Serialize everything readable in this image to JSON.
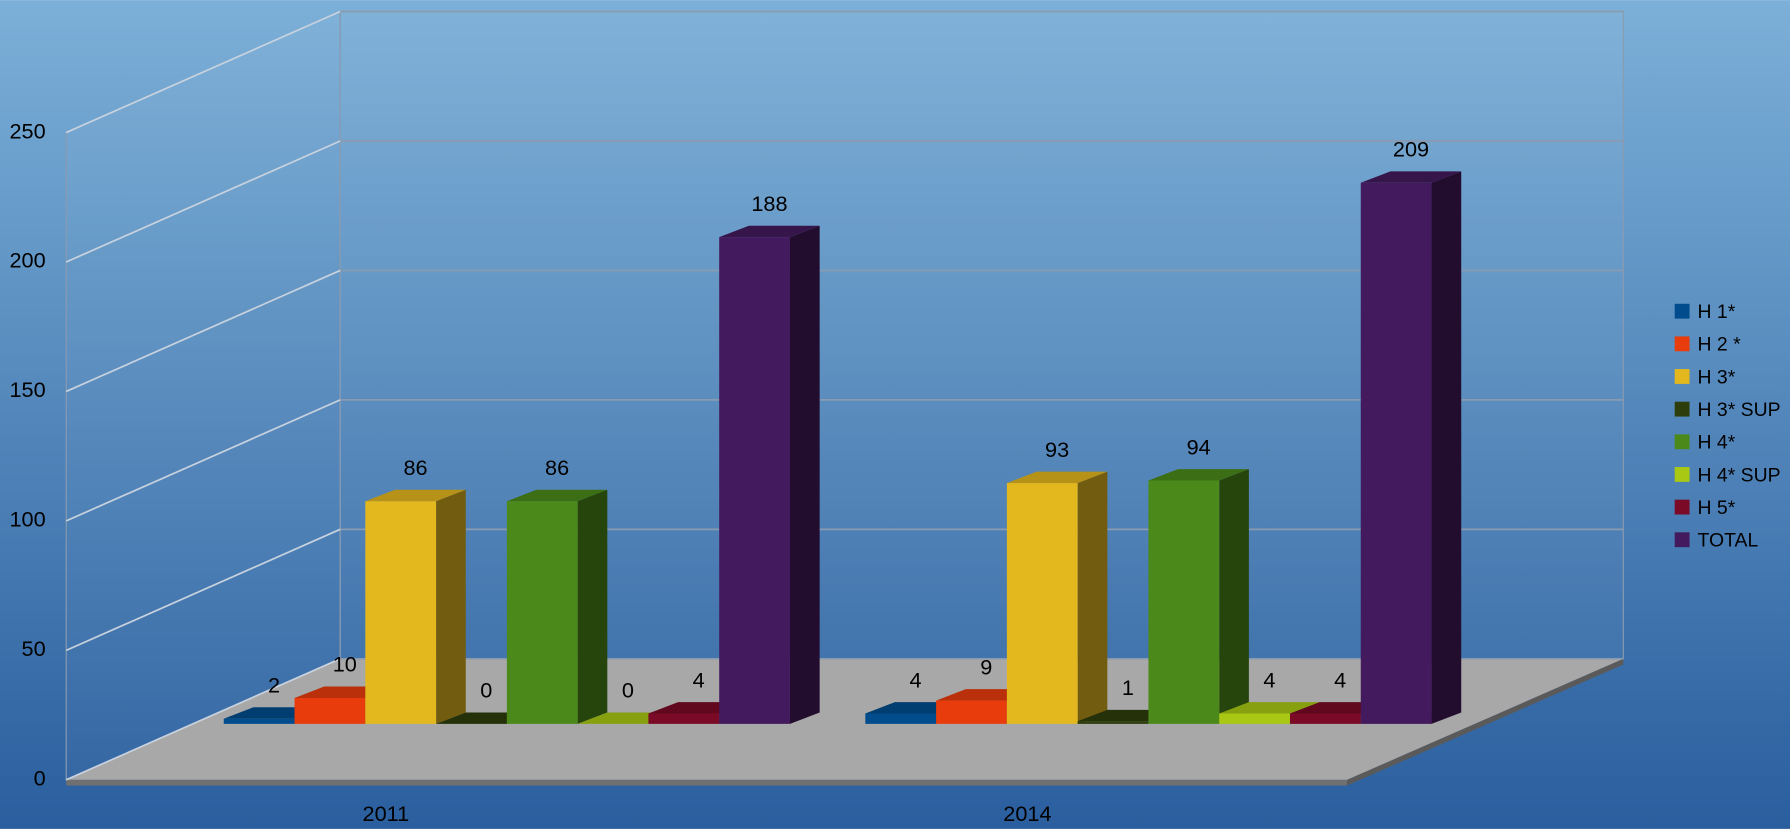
{
  "chart_data": {
    "type": "bar3d",
    "categories": [
      "2011",
      "2014"
    ],
    "series": [
      {
        "name": "H 1*",
        "color": "#004c8c",
        "values": [
          2,
          4
        ]
      },
      {
        "name": "H 2 *",
        "color": "#e83c0c",
        "values": [
          10,
          9
        ]
      },
      {
        "name": "H 3*",
        "color": "#e3b81e",
        "values": [
          86,
          93
        ]
      },
      {
        "name": "H 3* SUP",
        "color": "#2d3d0b",
        "values": [
          0,
          1
        ]
      },
      {
        "name": "H 4*",
        "color": "#4b8a1a",
        "values": [
          86,
          94
        ]
      },
      {
        "name": "H 4* SUP",
        "color": "#a8c814",
        "values": [
          0,
          4
        ]
      },
      {
        "name": "H 5*",
        "color": "#7b0a26",
        "values": [
          4,
          4
        ]
      },
      {
        "name": "TOTAL",
        "color": "#431a5e",
        "values": [
          188,
          209
        ]
      }
    ],
    "ylim": [
      0,
      250
    ],
    "yticks": [
      0,
      50,
      100,
      150,
      200,
      250
    ],
    "grid": true,
    "legend": "right"
  }
}
